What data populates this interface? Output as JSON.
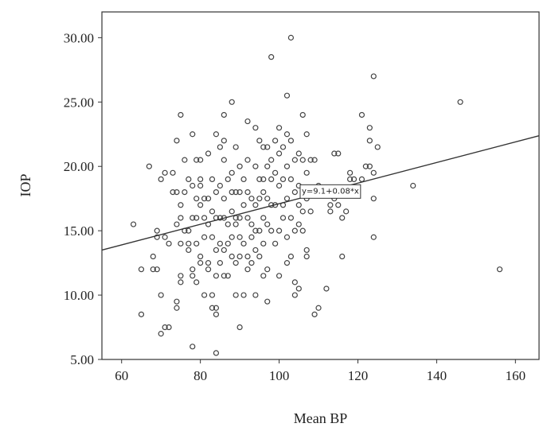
{
  "chart_data": {
    "type": "scatter",
    "xlabel": "Mean BP",
    "ylabel": "IOP",
    "xlim": [
      55,
      166
    ],
    "ylim": [
      5,
      32
    ],
    "x_ticks": [
      60,
      80,
      100,
      120,
      140,
      160
    ],
    "y_ticks": [
      5,
      10,
      15,
      20,
      25,
      30
    ],
    "x_tick_labels": [
      "60",
      "80",
      "100",
      "120",
      "140",
      "160"
    ],
    "y_tick_labels": [
      "5.00",
      "10.00",
      "15.00",
      "20.00",
      "25.00",
      "30.00"
    ],
    "grid": false,
    "fit_line": {
      "label": "y=9.1+0.08*x",
      "intercept": 9.1,
      "slope": 0.08,
      "label_anchor_x": 113
    },
    "points": [
      [
        63,
        15.5
      ],
      [
        65,
        12
      ],
      [
        65,
        8.5
      ],
      [
        67,
        20
      ],
      [
        68,
        13
      ],
      [
        68,
        12
      ],
      [
        69,
        15
      ],
      [
        69,
        14.5
      ],
      [
        69,
        12
      ],
      [
        70,
        19
      ],
      [
        70,
        10
      ],
      [
        70,
        7
      ],
      [
        71,
        19.5
      ],
      [
        71,
        14.5
      ],
      [
        71,
        7.5
      ],
      [
        72,
        7.5
      ],
      [
        72,
        14
      ],
      [
        73,
        19.5
      ],
      [
        73,
        18
      ],
      [
        74,
        18
      ],
      [
        74,
        15.5
      ],
      [
        74,
        9.5
      ],
      [
        74,
        9
      ],
      [
        74,
        22
      ],
      [
        75,
        24
      ],
      [
        75,
        17
      ],
      [
        75,
        16
      ],
      [
        75,
        14
      ],
      [
        75,
        11.5
      ],
      [
        75,
        11
      ],
      [
        76,
        18
      ],
      [
        76,
        15
      ],
      [
        76,
        20.5
      ],
      [
        77,
        15
      ],
      [
        77,
        19
      ],
      [
        77,
        14
      ],
      [
        77,
        13.5
      ],
      [
        78,
        22.5
      ],
      [
        78,
        18.5
      ],
      [
        78,
        16
      ],
      [
        78,
        12
      ],
      [
        78,
        11.5
      ],
      [
        78,
        6
      ],
      [
        79,
        20.5
      ],
      [
        79,
        17.5
      ],
      [
        79,
        16
      ],
      [
        79,
        14
      ],
      [
        79,
        11
      ],
      [
        80,
        20.5
      ],
      [
        80,
        19
      ],
      [
        80,
        18.5
      ],
      [
        80,
        17
      ],
      [
        80,
        13
      ],
      [
        80,
        12.5
      ],
      [
        81,
        17.5
      ],
      [
        81,
        16
      ],
      [
        81,
        14.5
      ],
      [
        81,
        10
      ],
      [
        82,
        21
      ],
      [
        82,
        17.5
      ],
      [
        82,
        15.5
      ],
      [
        82,
        12.5
      ],
      [
        82,
        12
      ],
      [
        83,
        19
      ],
      [
        83,
        16.5
      ],
      [
        83,
        14.5
      ],
      [
        83,
        9
      ],
      [
        83,
        10
      ],
      [
        84,
        22.5
      ],
      [
        84,
        18
      ],
      [
        84,
        16
      ],
      [
        84,
        13.5
      ],
      [
        84,
        11.5
      ],
      [
        84,
        9
      ],
      [
        84,
        8.5
      ],
      [
        84,
        5.5
      ],
      [
        85,
        21.5
      ],
      [
        85,
        18.5
      ],
      [
        85,
        16
      ],
      [
        85,
        14
      ],
      [
        85,
        12.5
      ],
      [
        86,
        24
      ],
      [
        86,
        22
      ],
      [
        86,
        20.5
      ],
      [
        86,
        17.5
      ],
      [
        86,
        16
      ],
      [
        86,
        13.5
      ],
      [
        86,
        11.5
      ],
      [
        87,
        19
      ],
      [
        87,
        15.5
      ],
      [
        87,
        14
      ],
      [
        87,
        11.5
      ],
      [
        88,
        25
      ],
      [
        88,
        19.5
      ],
      [
        88,
        18
      ],
      [
        88,
        16.5
      ],
      [
        88,
        14.5
      ],
      [
        88,
        13
      ],
      [
        89,
        21.5
      ],
      [
        89,
        18
      ],
      [
        89,
        16
      ],
      [
        89,
        15.5
      ],
      [
        89,
        12.5
      ],
      [
        89,
        10
      ],
      [
        90,
        20
      ],
      [
        90,
        18
      ],
      [
        90,
        16
      ],
      [
        90,
        14.5
      ],
      [
        90,
        13
      ],
      [
        90,
        7.5
      ],
      [
        91,
        19
      ],
      [
        91,
        17
      ],
      [
        91,
        14
      ],
      [
        91,
        10
      ],
      [
        92,
        23.5
      ],
      [
        92,
        20.5
      ],
      [
        92,
        18
      ],
      [
        92,
        16
      ],
      [
        92,
        13
      ],
      [
        92,
        12
      ],
      [
        93,
        17.5
      ],
      [
        93,
        15.5
      ],
      [
        93,
        14.5
      ],
      [
        93,
        12.5
      ],
      [
        94,
        23
      ],
      [
        94,
        20
      ],
      [
        94,
        17
      ],
      [
        94,
        15
      ],
      [
        94,
        13.5
      ],
      [
        94,
        10
      ],
      [
        95,
        22
      ],
      [
        95,
        19
      ],
      [
        95,
        17.5
      ],
      [
        95,
        15
      ],
      [
        95,
        13
      ],
      [
        96,
        21.5
      ],
      [
        96,
        19
      ],
      [
        96,
        18
      ],
      [
        96,
        16
      ],
      [
        96,
        14
      ],
      [
        96,
        11.5
      ],
      [
        97,
        21.5
      ],
      [
        97,
        20
      ],
      [
        97,
        17.5
      ],
      [
        97,
        15.5
      ],
      [
        97,
        12
      ],
      [
        97,
        9.5
      ],
      [
        98,
        28.5
      ],
      [
        98,
        20.5
      ],
      [
        98,
        19
      ],
      [
        98,
        17
      ],
      [
        98,
        15
      ],
      [
        99,
        22
      ],
      [
        99,
        19.5
      ],
      [
        99,
        17
      ],
      [
        99,
        14
      ],
      [
        100,
        23
      ],
      [
        100,
        21
      ],
      [
        100,
        18.5
      ],
      [
        100,
        15
      ],
      [
        100,
        11.5
      ],
      [
        101,
        21.5
      ],
      [
        101,
        19
      ],
      [
        101,
        17
      ],
      [
        101,
        16
      ],
      [
        102,
        25.5
      ],
      [
        102,
        22.5
      ],
      [
        102,
        20
      ],
      [
        102,
        17.5
      ],
      [
        102,
        14.5
      ],
      [
        102,
        12.5
      ],
      [
        103,
        30
      ],
      [
        103,
        22
      ],
      [
        103,
        19
      ],
      [
        103,
        16
      ],
      [
        103,
        13
      ],
      [
        104,
        20.5
      ],
      [
        104,
        18
      ],
      [
        104,
        15
      ],
      [
        104,
        11
      ],
      [
        104,
        10
      ],
      [
        105,
        21
      ],
      [
        105,
        18.5
      ],
      [
        105,
        17
      ],
      [
        105,
        15.5
      ],
      [
        105,
        10.5
      ],
      [
        106,
        24
      ],
      [
        106,
        20.5
      ],
      [
        106,
        18
      ],
      [
        106,
        16.5
      ],
      [
        106,
        15
      ],
      [
        107,
        22.5
      ],
      [
        107,
        19.5
      ],
      [
        107,
        17.5
      ],
      [
        107,
        13.5
      ],
      [
        107,
        13
      ],
      [
        108,
        20.5
      ],
      [
        108,
        16.5
      ],
      [
        109,
        20.5
      ],
      [
        109,
        8.5
      ],
      [
        110,
        18.5
      ],
      [
        110,
        9
      ],
      [
        111,
        18
      ],
      [
        112,
        10.5
      ],
      [
        113,
        17
      ],
      [
        113,
        16.5
      ],
      [
        114,
        21
      ],
      [
        114,
        17.5
      ],
      [
        115,
        21
      ],
      [
        115,
        17
      ],
      [
        116,
        16
      ],
      [
        116,
        13
      ],
      [
        117,
        18
      ],
      [
        117,
        16.5
      ],
      [
        118,
        19.5
      ],
      [
        118,
        19
      ],
      [
        119,
        19
      ],
      [
        119,
        18
      ],
      [
        121,
        24
      ],
      [
        121,
        19
      ],
      [
        122,
        20
      ],
      [
        123,
        23
      ],
      [
        123,
        22
      ],
      [
        123,
        20
      ],
      [
        124,
        27
      ],
      [
        124,
        19.5
      ],
      [
        124,
        17.5
      ],
      [
        124,
        14.5
      ],
      [
        125,
        21.5
      ],
      [
        134,
        18.5
      ],
      [
        146,
        25
      ],
      [
        156,
        12
      ]
    ]
  }
}
